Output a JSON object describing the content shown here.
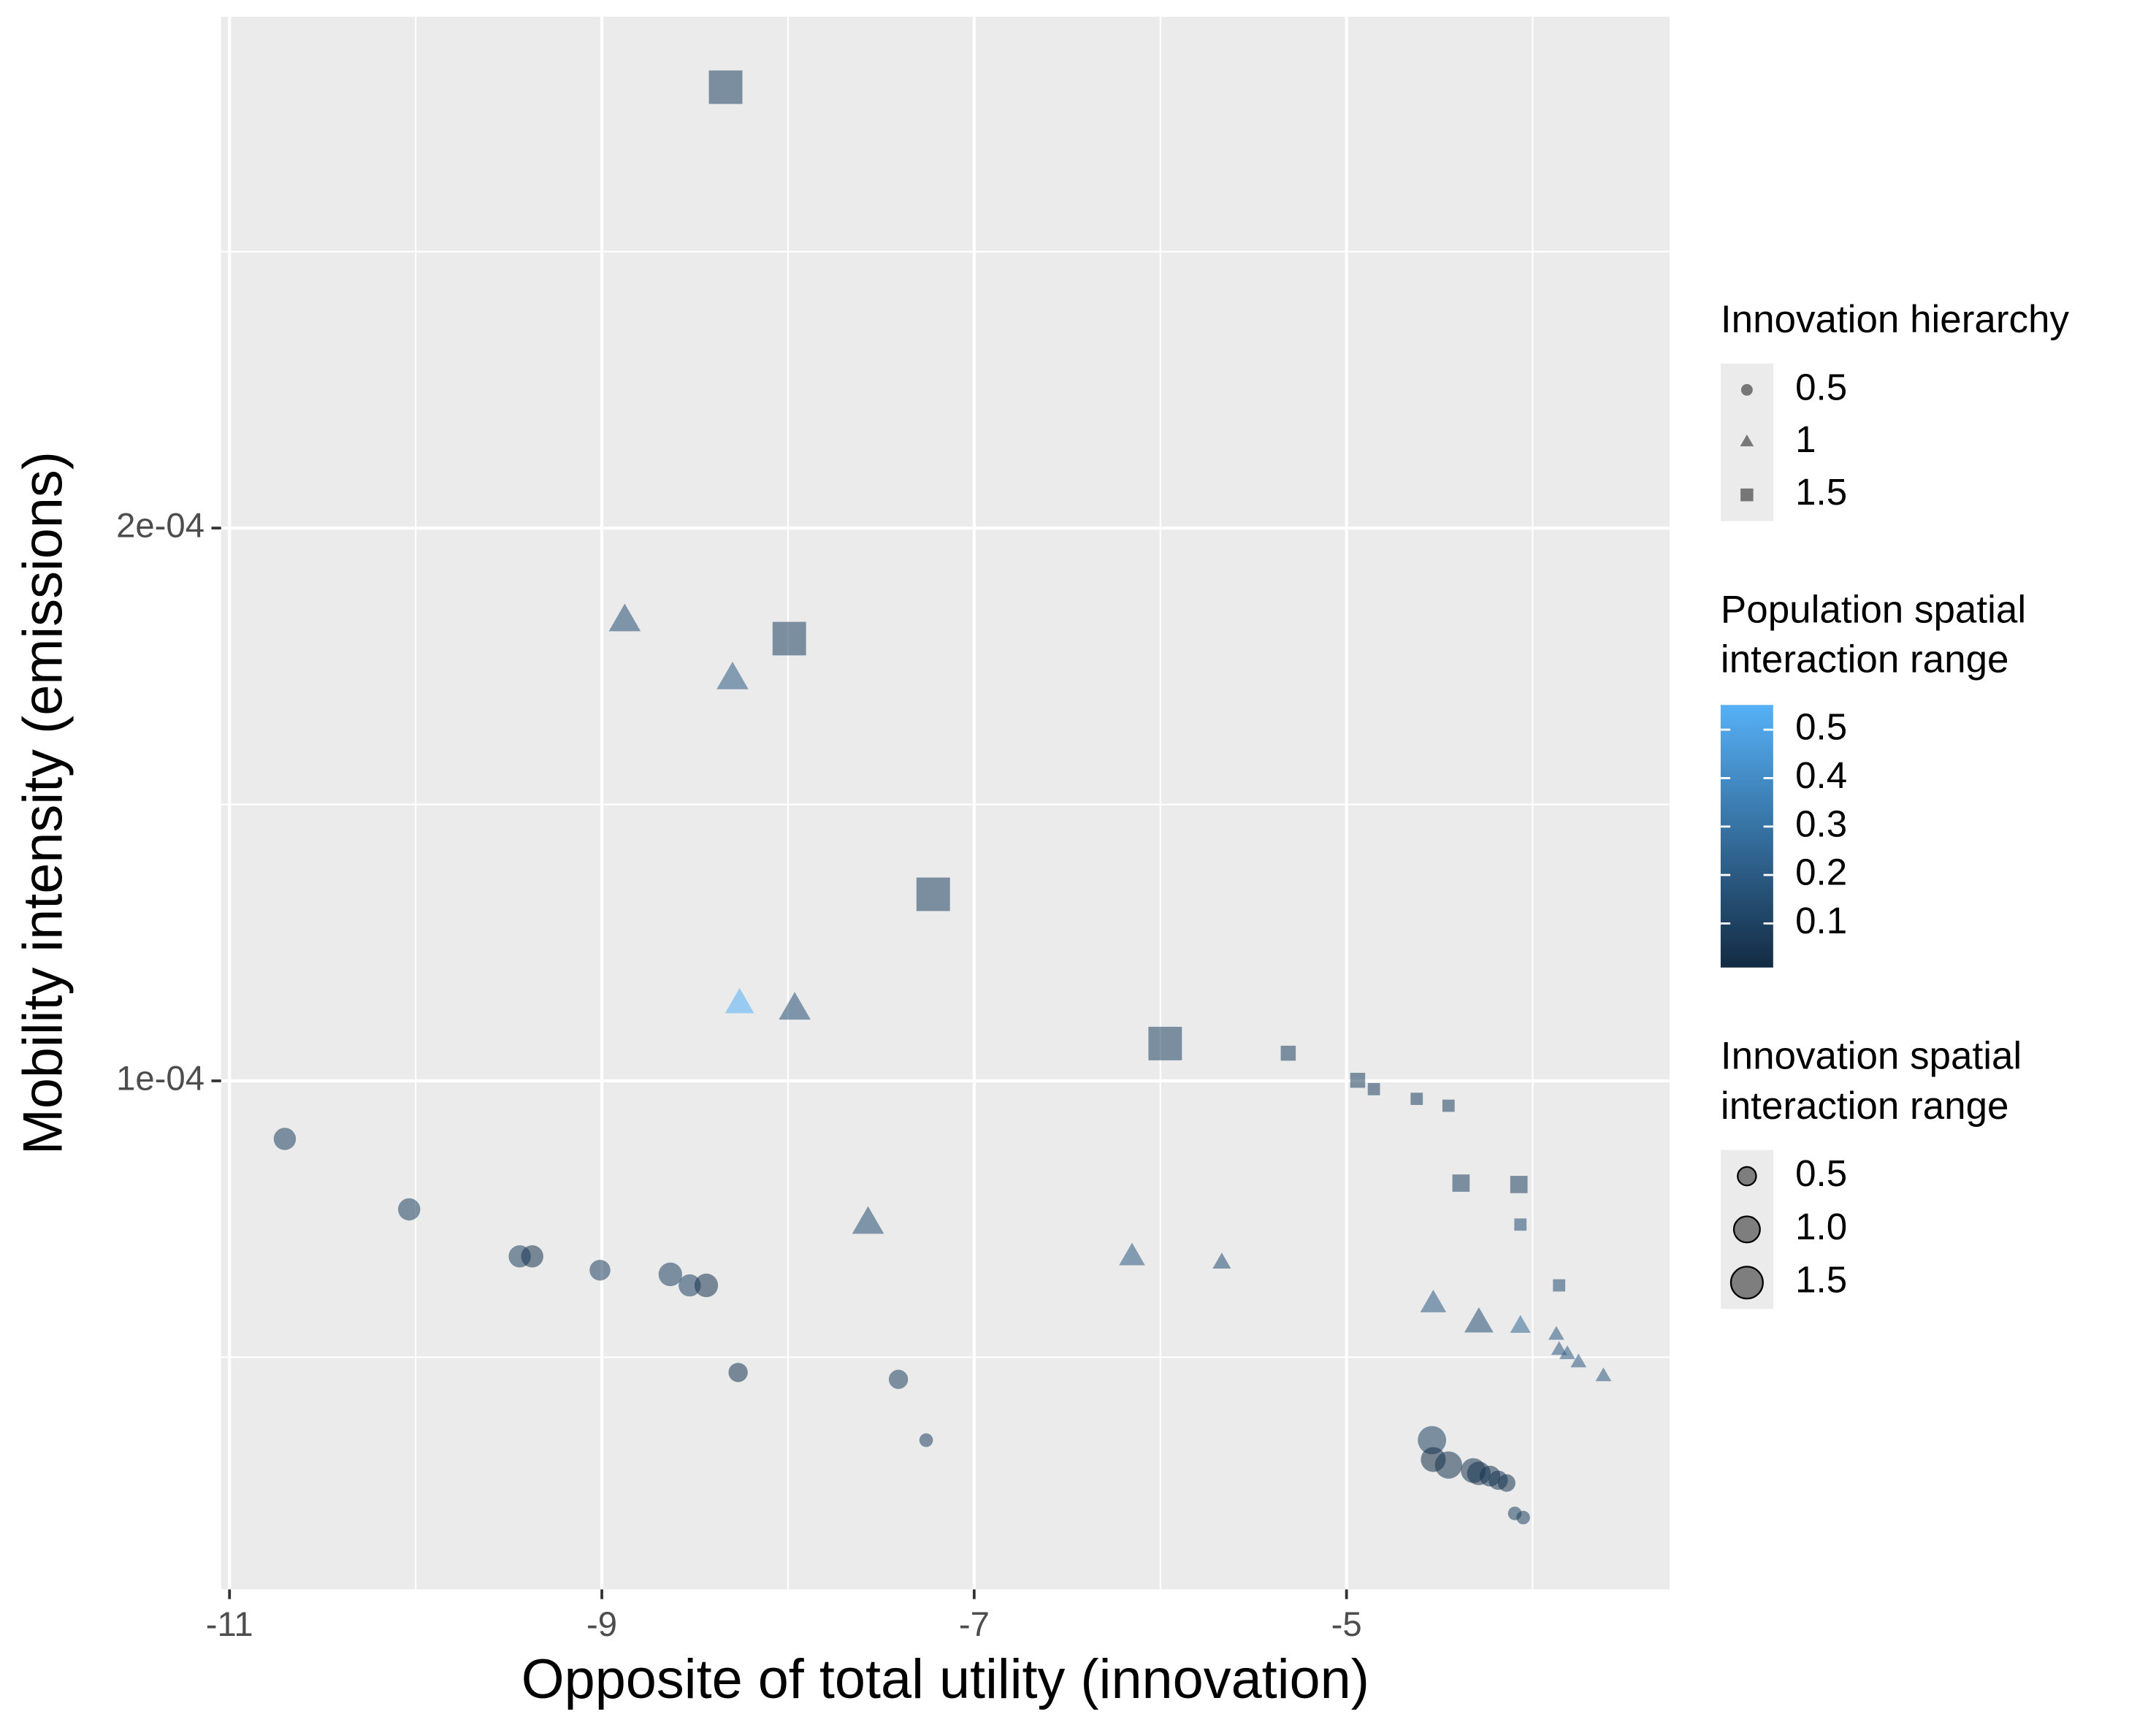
{
  "chart_data": {
    "type": "scatter",
    "x_label": "Opposite of total utility (innovation)",
    "y_label": "Mobility intensity (emissions)",
    "xlim": [
      -11.045,
      -3.265
    ],
    "ylim": [
      8e-06,
      0.0002925
    ],
    "xticks": [
      -11,
      -9,
      -7,
      -5
    ],
    "yticks": [
      {
        "value": 0.0001,
        "label": "1e-04"
      },
      {
        "value": 0.0002,
        "label": "2e-04"
      }
    ],
    "minor_xticks": [
      -10,
      -8,
      -6,
      -4
    ],
    "minor_yticks": [
      5e-05,
      0.00015,
      0.00025
    ],
    "grid": true,
    "alpha": 0.55,
    "shape_legend": {
      "title": "Innovation hierarchy",
      "key_color": "#5a5a5a"
    },
    "color_legend": {
      "title": [
        "Population spatial",
        "interaction range"
      ],
      "colors": [
        "#132B43",
        "#56B1F7"
      ],
      "lim": [
        0.009,
        0.551
      ],
      "ticks": [
        0.1,
        0.2,
        0.3,
        0.4,
        0.5
      ]
    },
    "size_legend": {
      "title": [
        "Innovation spatial",
        "interaction range"
      ],
      "values": [
        0.5,
        {
          "value": 1,
          "label": "1.0"
        },
        1.5
      ]
    },
    "series": [
      {
        "name": "0.5",
        "shape": "circle",
        "x": [
          -10.703,
          -10.035,
          -9.441,
          -9.374,
          -9.01,
          -8.632,
          -8.528,
          -8.439,
          -8.268,
          -7.407,
          -7.258,
          -4.541,
          -4.534,
          -4.452,
          -4.319,
          -4.289,
          -4.229,
          -4.185,
          -4.14,
          -4.096,
          -4.051
        ],
        "values": [
          8.95e-05,
          7.675e-05,
          6.825e-05,
          6.825e-05,
          6.575e-05,
          6.5e-05,
          6.3e-05,
          6.3e-05,
          4.725e-05,
          4.6e-05,
          3.5e-05,
          3.5e-05,
          3.15e-05,
          3.05e-05,
          2.95e-05,
          2.9e-05,
          2.85e-05,
          2.775e-05,
          2.725e-05,
          2.175e-05,
          2.1e-05
        ],
        "sizes": [
          0.8,
          0.8,
          0.8,
          0.8,
          0.7,
          0.9,
          0.8,
          0.9,
          0.6,
          0.6,
          0.3,
          1.3,
          1.0,
          1.2,
          1.0,
          0.9,
          0.7,
          0.6,
          0.5,
          0.3,
          0.3
        ],
        "color_values": [
          0.1,
          0.1,
          0.1,
          0.05,
          0.1,
          0.1,
          0.1,
          0.05,
          0.05,
          0.1,
          0.1,
          0.1,
          0.02,
          0.05,
          0.05,
          0.05,
          0.05,
          0.05,
          0.05,
          0.1,
          0.1
        ]
      },
      {
        "name": "1",
        "shape": "triangle",
        "x": [
          -8.877,
          -8.298,
          -8.26,
          -7.964,
          -7.57,
          -6.152,
          -5.67,
          -4.534,
          -4.289,
          -4.066,
          -3.873,
          -3.858,
          -3.814,
          -3.754,
          -3.62
        ],
        "values": [
          0.000183,
          0.0001725,
          0.00011375,
          0.00011275,
          7.4e-05,
          6.8e-05,
          6.7e-05,
          5.95e-05,
          5.6e-05,
          5.55e-05,
          5.4e-05,
          5.125e-05,
          5.05e-05,
          4.9e-05,
          4.65e-05
        ],
        "sizes": [
          1.2,
          1.2,
          1.0,
          1.2,
          1.2,
          0.8,
          0.4,
          0.8,
          1.0,
          0.5,
          0.3,
          0.3,
          0.3,
          0.3,
          0.3
        ],
        "color_values": [
          0.15,
          0.2,
          0.55,
          0.15,
          0.15,
          0.2,
          0.15,
          0.2,
          0.15,
          0.25,
          0.2,
          0.2,
          0.2,
          0.2,
          0.2
        ]
      },
      {
        "name": "1.5",
        "shape": "square",
        "x": [
          -8.335,
          -7.993,
          -7.22,
          -5.974,
          -5.313,
          -4.94,
          -4.853,
          -4.623,
          -4.452,
          -4.385,
          -4.074,
          -4.066,
          -3.858
        ],
        "values": [
          0.00027975,
          0.00018,
          0.00013375,
          0.00010675,
          0.000105,
          0.0001001,
          9.85e-05,
          9.675e-05,
          9.55e-05,
          8.15e-05,
          8.125e-05,
          7.4e-05,
          6.3e-05
        ],
        "sizes": [
          1.5,
          1.5,
          1.5,
          1.5,
          0.3,
          0.3,
          0.2,
          0.2,
          0.2,
          0.4,
          0.4,
          0.2,
          0.2
        ],
        "color_values": [
          0.1,
          0.1,
          0.1,
          0.1,
          0.1,
          0.1,
          0.1,
          0.1,
          0.1,
          0.1,
          0.1,
          0.15,
          0.15
        ]
      }
    ]
  }
}
